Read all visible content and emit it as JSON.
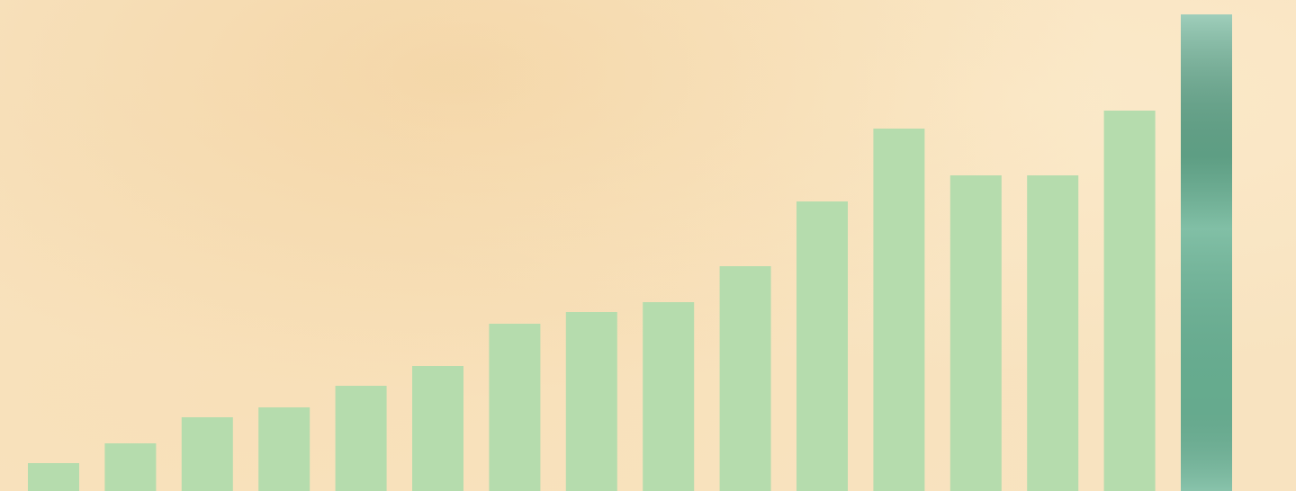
{
  "chart_data": {
    "type": "bar",
    "values": [
      31,
      53,
      82,
      93,
      117,
      139,
      186,
      199,
      210,
      250,
      322,
      403,
      351,
      351,
      423,
      530
    ],
    "colors": [
      "#b5dcad",
      "#b5dcad",
      "#b5dcad",
      "#b5dcad",
      "#b5dcad",
      "#b5dcad",
      "#b5dcad",
      "#b5dcad",
      "#b5dcad",
      "#b5dcad",
      "#b5dcad",
      "#b5dcad",
      "#b5dcad",
      "#b5dcad",
      "#b5dcad",
      "#6bb496"
    ],
    "ylim": [
      0,
      546
    ]
  }
}
